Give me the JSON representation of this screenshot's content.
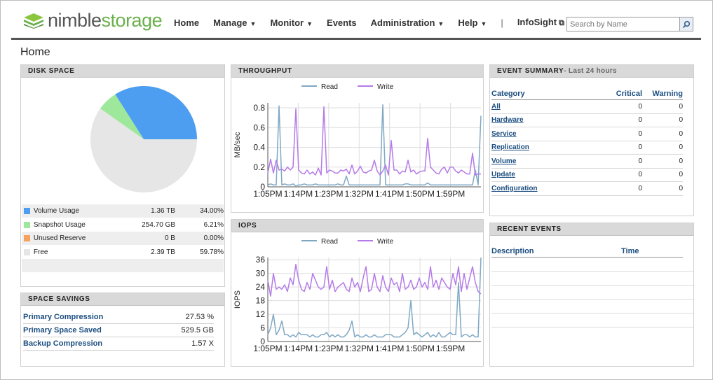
{
  "header": {
    "logo": {
      "part1": "nimble",
      "part2": "storage"
    },
    "nav": {
      "home": "Home",
      "manage": "Manage",
      "monitor": "Monitor",
      "events": "Events",
      "administration": "Administration",
      "help": "Help",
      "separator": "|",
      "infosight": "InfoSight"
    },
    "search": {
      "placeholder": "Search by Name"
    }
  },
  "page_title": "Home",
  "disk_space": {
    "title": "DISK SPACE",
    "legend": [
      {
        "name": "Volume Usage",
        "size": "1.36 TB",
        "percent": "34.00%",
        "color": "#4d9ef0",
        "value": 34.0
      },
      {
        "name": "Snapshot Usage",
        "size": "254.70 GB",
        "percent": "6.21%",
        "color": "#9de89a",
        "value": 6.21
      },
      {
        "name": "Unused Reserve",
        "size": "0 B",
        "percent": "0.00%",
        "color": "#f5a35c",
        "value": 0.0
      },
      {
        "name": "Free",
        "size": "2.39 TB",
        "percent": "59.78%",
        "color": "#e6e6e6",
        "value": 59.78
      }
    ]
  },
  "space_savings": {
    "title": "SPACE SAVINGS",
    "rows": [
      {
        "label": "Primary Compression",
        "value": "27.53 %"
      },
      {
        "label": "Primary Space Saved",
        "value": "529.5 GB"
      },
      {
        "label": "Backup Compression",
        "value": "1.57 X"
      }
    ]
  },
  "throughput": {
    "title": "THROUGHPUT",
    "chart_data": {
      "type": "line",
      "ylabel": "MB/sec",
      "ylim": [
        0,
        0.85
      ],
      "yticks": [
        "0",
        "0.2",
        "0.4",
        "0.6",
        "0.8"
      ],
      "ytick_values": [
        0,
        0.2,
        0.4,
        0.6,
        0.8
      ],
      "xticks": [
        "1:05PM",
        "1:14PM",
        "1:23PM",
        "1:32PM",
        "1:41PM",
        "1:50PM",
        "1:59PM"
      ],
      "grid": true,
      "legend_position": "top",
      "series": [
        {
          "name": "Read",
          "color": "#7fa8c4",
          "values": [
            0.02,
            0.03,
            0.02,
            0.02,
            0.82,
            0.02,
            0.03,
            0.02,
            0.02,
            0.03,
            0.01,
            0.02,
            0.02,
            0.03,
            0.02,
            0.02,
            0.02,
            0.03,
            0.02,
            0.02,
            0.02,
            0.02,
            0.02,
            0.02,
            0.02,
            0.03,
            0.02,
            0.02,
            0.11,
            0.02,
            0.02,
            0.02,
            0.02,
            0.02,
            0.02,
            0.02,
            0.02,
            0.02,
            0.02,
            0.02,
            0.02,
            0.83,
            0.02,
            0.02,
            0.02,
            0.02,
            0.02,
            0.02,
            0.02,
            0.03,
            0.03,
            0.02,
            0.02,
            0.02,
            0.02,
            0.02,
            0.02,
            0.04,
            0.02,
            0.02,
            0.02,
            0.02,
            0.02,
            0.02,
            0.02,
            0.02,
            0.02,
            0.02,
            0.02,
            0.02,
            0.02,
            0.02,
            0.02,
            0.02,
            0.17,
            0.02,
            0.72
          ]
        },
        {
          "name": "Write",
          "color": "#b57ae8",
          "values": [
            0.14,
            0.28,
            0.14,
            0.27,
            0.17,
            0.18,
            0.16,
            0.2,
            0.17,
            0.2,
            0.79,
            0.17,
            0.14,
            0.13,
            0.17,
            0.13,
            0.15,
            0.12,
            0.19,
            0.12,
            0.81,
            0.14,
            0.17,
            0.16,
            0.14,
            0.14,
            0.17,
            0.16,
            0.18,
            0.13,
            0.22,
            0.13,
            0.16,
            0.21,
            0.15,
            0.14,
            0.16,
            0.17,
            0.27,
            0.16,
            0.12,
            0.16,
            0.22,
            0.12,
            0.47,
            0.17,
            0.17,
            0.13,
            0.16,
            0.15,
            0.27,
            0.15,
            0.17,
            0.13,
            0.15,
            0.16,
            0.16,
            0.49,
            0.2,
            0.17,
            0.14,
            0.13,
            0.18,
            0.2,
            0.14,
            0.2,
            0.2,
            0.16,
            0.14,
            0.17,
            0.15,
            0.13,
            0.13,
            0.34,
            0.12,
            0.13,
            0.13
          ]
        }
      ]
    }
  },
  "iops": {
    "title": "IOPS",
    "chart_data": {
      "type": "line",
      "ylabel": "IOPS",
      "ylim": [
        0,
        37
      ],
      "yticks": [
        "0",
        "6",
        "12",
        "18",
        "24",
        "30",
        "36"
      ],
      "ytick_values": [
        0,
        6,
        12,
        18,
        24,
        30,
        36
      ],
      "xticks": [
        "1:05PM",
        "1:14PM",
        "1:23PM",
        "1:32PM",
        "1:41PM",
        "1:50PM",
        "1:59PM"
      ],
      "grid": true,
      "legend_position": "top",
      "series": [
        {
          "name": "Read",
          "color": "#7fa8c4",
          "values": [
            3,
            6,
            12,
            3,
            5,
            9,
            3,
            3,
            2,
            3,
            2,
            4,
            3,
            3,
            3,
            2,
            3,
            2,
            2,
            3,
            3,
            4,
            2,
            3,
            2,
            3,
            2,
            2,
            3,
            5,
            9,
            2,
            3,
            2,
            2,
            3,
            2,
            2,
            3,
            2,
            2,
            2,
            3,
            3,
            3,
            2,
            2,
            2,
            3,
            4,
            6,
            18,
            3,
            4,
            3,
            2,
            3,
            4,
            2,
            3,
            2,
            4,
            2,
            2,
            3,
            4,
            3,
            3,
            26,
            2,
            3,
            3,
            2,
            3,
            2,
            2,
            37
          ]
        },
        {
          "name": "Write",
          "color": "#b57ae8",
          "values": [
            27,
            20,
            30,
            23,
            24,
            23,
            25,
            22,
            28,
            25,
            34,
            27,
            23,
            22,
            26,
            23,
            30,
            27,
            24,
            23,
            24,
            33,
            23,
            27,
            22,
            24,
            25,
            26,
            23,
            22,
            28,
            24,
            26,
            22,
            28,
            33,
            22,
            23,
            30,
            24,
            22,
            29,
            24,
            22,
            28,
            25,
            26,
            22,
            30,
            23,
            24,
            27,
            23,
            24,
            28,
            24,
            26,
            23,
            33,
            24,
            27,
            23,
            28,
            26,
            24,
            23,
            30,
            25,
            33,
            22,
            30,
            23,
            28,
            33,
            26,
            22,
            21
          ]
        }
      ]
    }
  },
  "event_summary": {
    "title": "EVENT SUMMARY",
    "subtitle": "- Last 24 hours",
    "columns": {
      "category": "Category",
      "critical": "Critical",
      "warning": "Warning"
    },
    "rows": [
      {
        "category": "All",
        "critical": "0",
        "warning": "0"
      },
      {
        "category": "Hardware",
        "critical": "0",
        "warning": "0"
      },
      {
        "category": "Service",
        "critical": "0",
        "warning": "0"
      },
      {
        "category": "Replication",
        "critical": "0",
        "warning": "0"
      },
      {
        "category": "Volume",
        "critical": "0",
        "warning": "0"
      },
      {
        "category": "Update",
        "critical": "0",
        "warning": "0"
      },
      {
        "category": "Configuration",
        "critical": "0",
        "warning": "0"
      }
    ]
  },
  "recent_events": {
    "title": "RECENT EVENTS",
    "columns": {
      "description": "Description",
      "time": "Time"
    }
  }
}
